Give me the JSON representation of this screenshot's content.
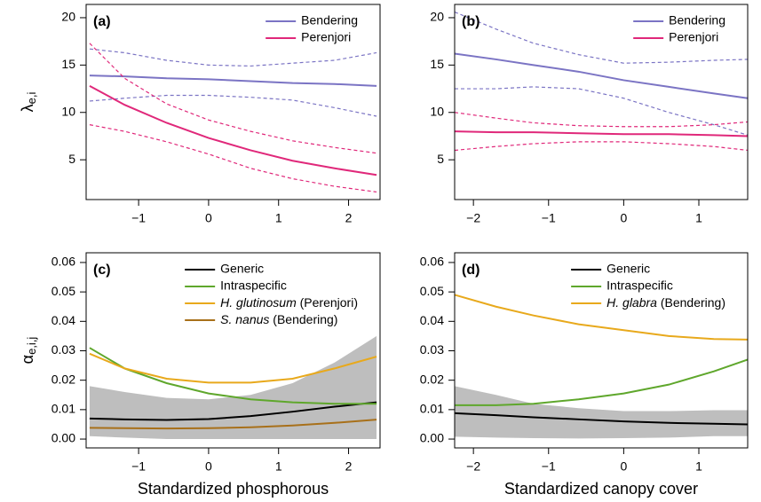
{
  "chart_data": [
    {
      "type": "line",
      "panel_label": "(a)",
      "ylabel": "λ",
      "ylabel_sub": "e,i",
      "x": [
        -1.7,
        -1.2,
        -0.6,
        0,
        0.6,
        1.2,
        1.8,
        2.4
      ],
      "xlim": [
        -1.75,
        2.45
      ],
      "xticks": [
        {
          "value": -1,
          "label": "−1"
        },
        0,
        1,
        2
      ],
      "ylim": [
        0.8,
        21.4
      ],
      "yticks": [
        5,
        10,
        15,
        20
      ],
      "legend": "upper right",
      "series": [
        {
          "name": "Bendering",
          "color": "#7b74c4",
          "values": [
            13.9,
            13.8,
            13.6,
            13.5,
            13.3,
            13.1,
            13.0,
            12.8
          ],
          "upper": [
            16.7,
            16.3,
            15.5,
            15.0,
            14.9,
            15.2,
            15.5,
            16.3
          ],
          "lower": [
            11.2,
            11.5,
            11.8,
            11.8,
            11.6,
            11.3,
            10.5,
            9.6
          ]
        },
        {
          "name": "Perenjori",
          "color": "#e0287a",
          "values": [
            12.8,
            10.8,
            8.9,
            7.3,
            6.0,
            4.9,
            4.1,
            3.4
          ],
          "upper": [
            17.3,
            13.6,
            10.9,
            9.2,
            8.0,
            7.0,
            6.3,
            5.7
          ],
          "lower": [
            8.7,
            8.0,
            6.9,
            5.6,
            4.1,
            3.0,
            2.2,
            1.6
          ]
        }
      ]
    },
    {
      "type": "line",
      "panel_label": "(b)",
      "x": [
        -2.25,
        -1.7,
        -1.2,
        -0.6,
        0,
        0.6,
        1.2,
        1.65
      ],
      "xlim": [
        -2.25,
        1.65
      ],
      "xticks": [
        {
          "value": -2,
          "label": "−2"
        },
        {
          "value": -1,
          "label": "−1"
        },
        0,
        1
      ],
      "ylim": [
        0.8,
        21.4
      ],
      "yticks": [
        5,
        10,
        15,
        20
      ],
      "legend": "upper right",
      "series": [
        {
          "name": "Bendering",
          "color": "#7b74c4",
          "values": [
            16.2,
            15.6,
            15.0,
            14.3,
            13.4,
            12.7,
            12.0,
            11.5
          ],
          "upper": [
            20.6,
            18.8,
            17.3,
            16.1,
            15.2,
            15.3,
            15.5,
            15.6
          ],
          "lower": [
            12.5,
            12.5,
            12.7,
            12.5,
            11.5,
            10.0,
            8.7,
            7.6
          ]
        },
        {
          "name": "Perenjori",
          "color": "#e0287a",
          "values": [
            8.0,
            7.9,
            7.9,
            7.8,
            7.7,
            7.7,
            7.6,
            7.5
          ],
          "upper": [
            10.0,
            9.4,
            8.9,
            8.6,
            8.5,
            8.5,
            8.7,
            9.0
          ],
          "lower": [
            6.0,
            6.4,
            6.7,
            6.9,
            6.9,
            6.7,
            6.4,
            6.0
          ]
        }
      ]
    },
    {
      "type": "line",
      "panel_label": "(c)",
      "ylabel": "α",
      "ylabel_sub": "e,i,j",
      "xlabel": "Standardized phosphorous",
      "x": [
        -1.7,
        -1.2,
        -0.6,
        0,
        0.6,
        1.2,
        1.8,
        2.4
      ],
      "xlim": [
        -1.75,
        2.45
      ],
      "xticks": [
        {
          "value": -1,
          "label": "−1"
        },
        0,
        1,
        2
      ],
      "ylim": [
        -0.003,
        0.0633
      ],
      "yticks": [
        {
          "value": 0,
          "label": "0.00"
        },
        {
          "value": 0.01,
          "label": "0.01"
        },
        {
          "value": 0.02,
          "label": "0.02"
        },
        {
          "value": 0.03,
          "label": "0.03"
        },
        {
          "value": 0.04,
          "label": "0.04"
        },
        {
          "value": 0.05,
          "label": "0.05"
        },
        {
          "value": 0.06,
          "label": "0.06"
        }
      ],
      "legend": "upper right",
      "band": {
        "color": "#bebebe",
        "upper": [
          0.018,
          0.016,
          0.014,
          0.0135,
          0.015,
          0.019,
          0.026,
          0.035
        ],
        "lower": [
          0.001,
          0.0005,
          0,
          0,
          0,
          0,
          0,
          0
        ]
      },
      "series": [
        {
          "name": "Generic",
          "color": "#000000",
          "values": [
            0.007,
            0.0067,
            0.0065,
            0.0068,
            0.0078,
            0.0093,
            0.011,
            0.0125
          ]
        },
        {
          "name": "Intraspecific",
          "color": "#5fa72c",
          "values": [
            0.031,
            0.024,
            0.019,
            0.0155,
            0.0135,
            0.0125,
            0.012,
            0.012
          ]
        },
        {
          "name": "H. glutinosum (Perenjori)",
          "italic_species": true,
          "color": "#e8a91c",
          "values": [
            0.029,
            0.024,
            0.0205,
            0.0192,
            0.0192,
            0.0205,
            0.024,
            0.028
          ]
        },
        {
          "name": "S. nanus (Bendering)",
          "italic_species": true,
          "color": "#a8701a",
          "values": [
            0.0038,
            0.0037,
            0.0036,
            0.0037,
            0.004,
            0.0046,
            0.0055,
            0.0066
          ]
        }
      ]
    },
    {
      "type": "line",
      "panel_label": "(d)",
      "xlabel": "Standardized canopy cover",
      "x": [
        -2.25,
        -1.7,
        -1.2,
        -0.6,
        0,
        0.6,
        1.2,
        1.65
      ],
      "xlim": [
        -2.25,
        1.65
      ],
      "xticks": [
        {
          "value": -2,
          "label": "−2"
        },
        {
          "value": -1,
          "label": "−1"
        },
        0,
        1
      ],
      "ylim": [
        -0.003,
        0.0633
      ],
      "yticks": [
        {
          "value": 0,
          "label": "0.00"
        },
        {
          "value": 0.01,
          "label": "0.01"
        },
        {
          "value": 0.02,
          "label": "0.02"
        },
        {
          "value": 0.03,
          "label": "0.03"
        },
        {
          "value": 0.04,
          "label": "0.04"
        },
        {
          "value": 0.05,
          "label": "0.05"
        },
        {
          "value": 0.06,
          "label": "0.06"
        }
      ],
      "legend": "upper right",
      "band": {
        "color": "#bebebe",
        "upper": [
          0.018,
          0.015,
          0.012,
          0.0105,
          0.0095,
          0.0095,
          0.0098,
          0.0098
        ],
        "lower": [
          0.0008,
          0.0005,
          0.0003,
          0.0002,
          0.0003,
          0.0005,
          0.001,
          0.001
        ]
      },
      "series": [
        {
          "name": "Generic",
          "color": "#000000",
          "values": [
            0.0088,
            0.0081,
            0.0074,
            0.0067,
            0.006,
            0.0055,
            0.0052,
            0.005
          ]
        },
        {
          "name": "Intraspecific",
          "color": "#5fa72c",
          "values": [
            0.0115,
            0.0115,
            0.012,
            0.0135,
            0.0155,
            0.0185,
            0.023,
            0.027
          ]
        },
        {
          "name": "H. glabra (Bendering)",
          "italic_species": true,
          "color": "#e8a91c",
          "values": [
            0.049,
            0.045,
            0.042,
            0.039,
            0.037,
            0.035,
            0.034,
            0.0338
          ]
        }
      ]
    }
  ]
}
